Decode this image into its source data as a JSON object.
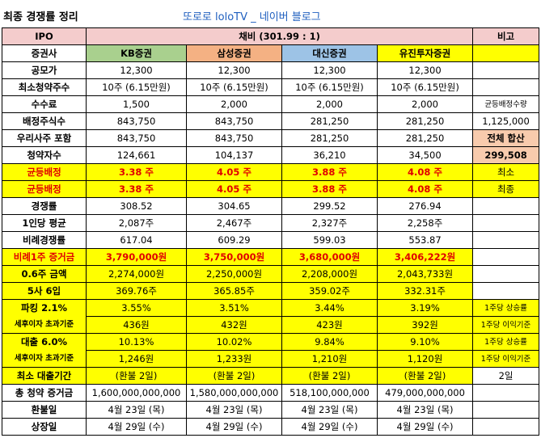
{
  "title": "최종 경쟁률 정리",
  "blog": "또로로 loloTV _ 네이버 블로그",
  "header": {
    "ipo": "IPO",
    "ratio": "채비 (301.99 : 1)",
    "note": "비고"
  },
  "companies": {
    "label": "증권사",
    "kb": "KB증권",
    "ss": "삼성증권",
    "ds": "대신증권",
    "yj": "유진투자증권"
  },
  "rows": {
    "price": {
      "label": "공모가",
      "kb": "12,300",
      "ss": "12,300",
      "ds": "12,300",
      "yj": "12,300"
    },
    "min": {
      "label": "최소청약주수",
      "kb": "10주 (6.15만원)",
      "ss": "10주 (6.15만원)",
      "ds": "10주 (6.15만원)",
      "yj": "10주 (6.15만원)"
    },
    "fee": {
      "label": "수수료",
      "kb": "1,500",
      "ss": "2,000",
      "ds": "2,000",
      "yj": "2,000",
      "note": "균등배정수량"
    },
    "alloc": {
      "label": "배정주식수",
      "kb": "843,750",
      "ss": "843,750",
      "ds": "281,250",
      "yj": "281,250",
      "note": "1,125,000"
    },
    "incl": {
      "label": "우리사주 포함",
      "kb": "843,750",
      "ss": "843,750",
      "ds": "281,250",
      "yj": "281,250",
      "note": "전체 합산"
    },
    "applicants": {
      "label": "청약자수",
      "kb": "124,661",
      "ss": "104,137",
      "ds": "36,210",
      "yj": "34,500",
      "note": "299,508"
    },
    "eq_min": {
      "label": "균등배정",
      "kb": "3.38 주",
      "ss": "4.05 주",
      "ds": "3.88 주",
      "yj": "4.08 주",
      "note": "최소"
    },
    "eq_final": {
      "label": "균등배정",
      "kb": "3.38 주",
      "ss": "4.05 주",
      "ds": "3.88 주",
      "yj": "4.08 주",
      "note": "최종"
    },
    "comp": {
      "label": "경쟁률",
      "kb": "308.52",
      "ss": "304.65",
      "ds": "299.52",
      "yj": "276.94"
    },
    "avg": {
      "label": "1인당 평균",
      "kb": "2,087주",
      "ss": "2,467주",
      "ds": "2,327주",
      "yj": "2,258주"
    },
    "prop": {
      "label": "비례경쟁률",
      "kb": "617.04",
      "ss": "609.29",
      "ds": "599.03",
      "yj": "553.87"
    },
    "prop_dep": {
      "label": "비례1주 증거금",
      "kb": "3,790,000원",
      "ss": "3,750,000원",
      "ds": "3,680,000원",
      "yj": "3,406,222원"
    },
    "point6": {
      "label": "0.6주 금액",
      "kb": "2,274,000원",
      "ss": "2,250,000원",
      "ds": "2,208,000원",
      "yj": "2,043,733원"
    },
    "round": {
      "label": "5사 6입",
      "kb": "369.76주",
      "ss": "365.85주",
      "ds": "359.02주",
      "yj": "332.31주"
    },
    "parking": {
      "label": "파킹 2.1%",
      "kb": "3.55%",
      "ss": "3.51%",
      "ds": "3.44%",
      "yj": "3.19%",
      "note": "1주당 상승률"
    },
    "parking2": {
      "label": "세후이자 초과기준",
      "kb": "436원",
      "ss": "432원",
      "ds": "423원",
      "yj": "392원",
      "note": "1주당 이익기준"
    },
    "loan": {
      "label": "대출 6.0%",
      "kb": "10.13%",
      "ss": "10.02%",
      "ds": "9.84%",
      "yj": "9.10%",
      "note": "1주당 상승률"
    },
    "loan2": {
      "label": "세후이자 초과기준",
      "kb": "1,246원",
      "ss": "1,233원",
      "ds": "1,210원",
      "yj": "1,120원",
      "note": "1주당 이익기준"
    },
    "minloan": {
      "label": "최소 대출기간",
      "kb": "(환불 2일)",
      "ss": "(환불 2일)",
      "ds": "(환불 2일)",
      "yj": "(환불 2일)",
      "note": "2일"
    },
    "total": {
      "label": "총 청약 증거금",
      "kb": "1,600,000,000,000",
      "ss": "1,580,000,000,000",
      "ds": "518,100,000,000",
      "yj": "479,000,000,000"
    },
    "refund": {
      "label": "환불일",
      "kb": "4월 23일 (목)",
      "ss": "4월 23일 (목)",
      "ds": "4월 23일 (목)",
      "yj": "4월 23일 (목)"
    },
    "listing": {
      "label": "상장일",
      "kb": "4월 29일 (수)",
      "ss": "4월 29일 (수)",
      "ds": "4월 29일 (수)",
      "yj": "4월 29일 (수)"
    }
  }
}
